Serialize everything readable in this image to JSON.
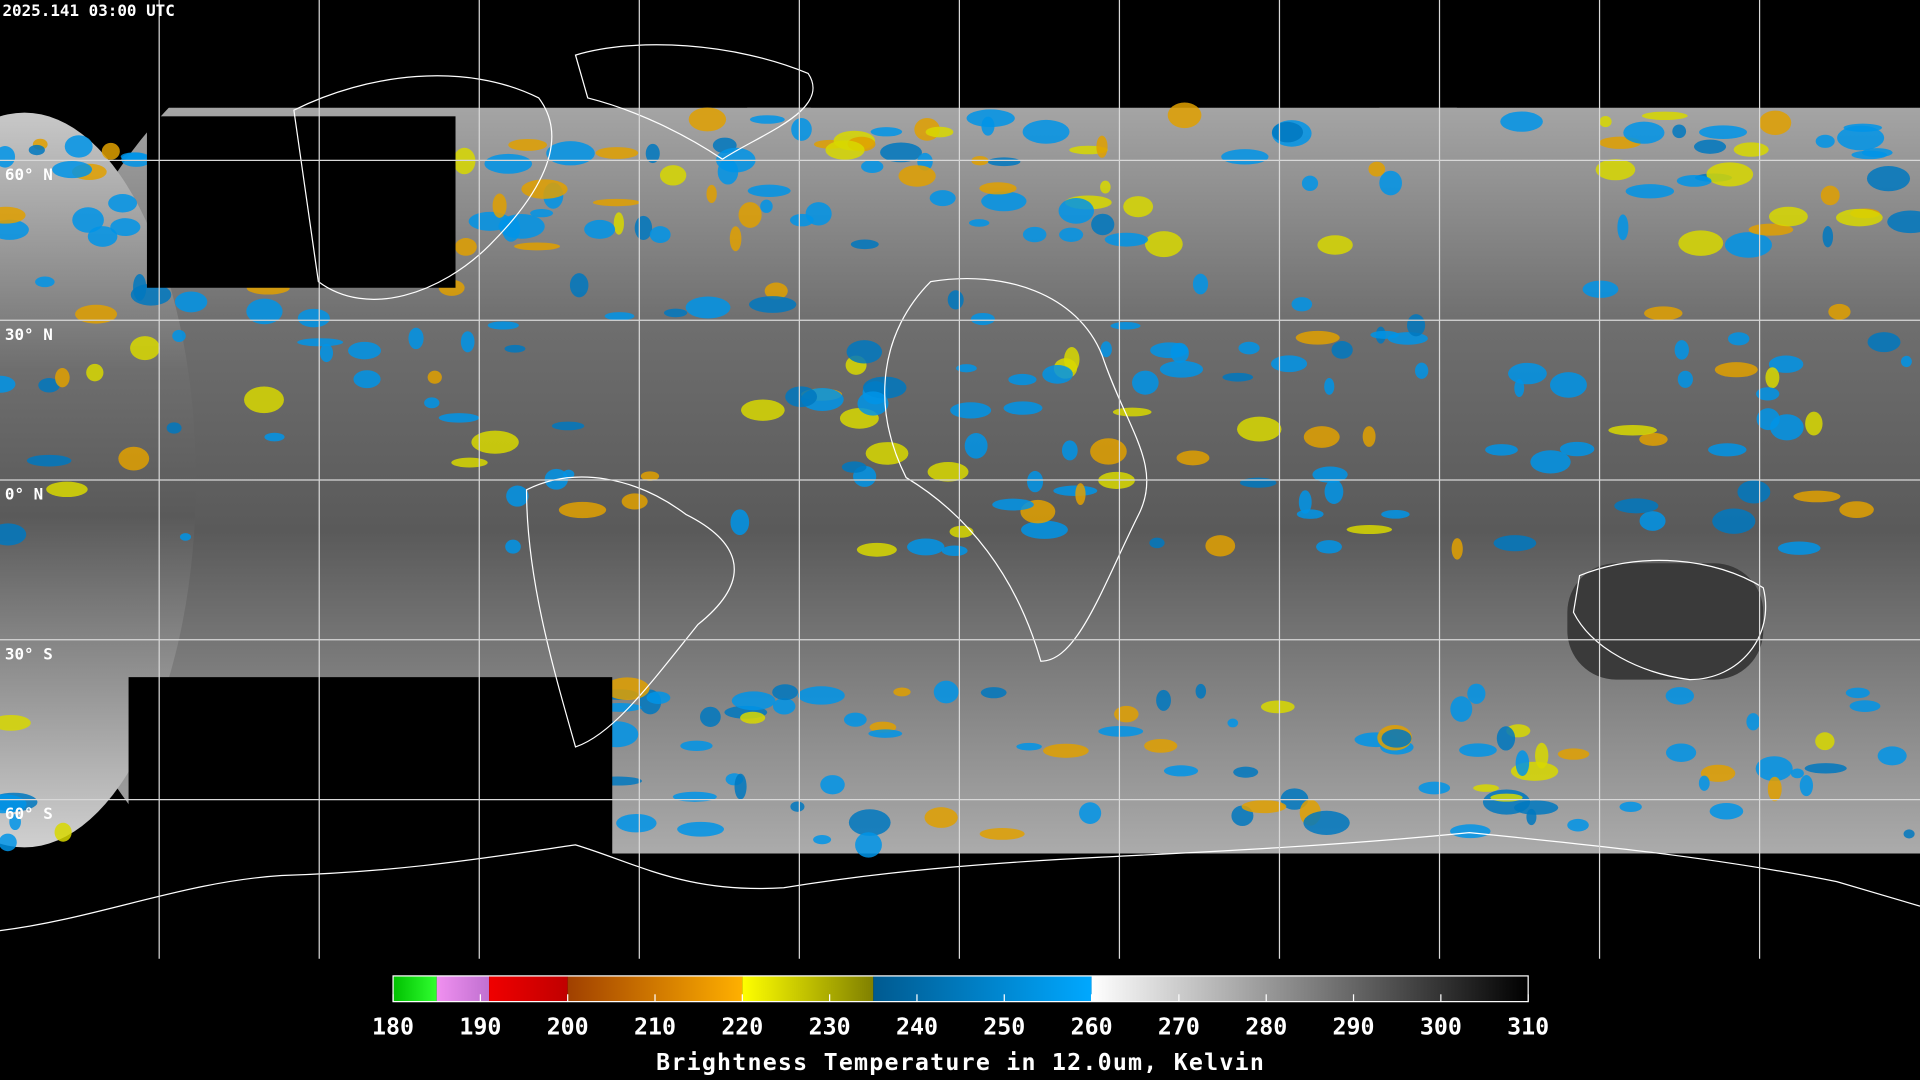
{
  "timestamp": "2025.141 03:00 UTC",
  "latitude_labels": [
    {
      "lat": 60,
      "label": "60° N"
    },
    {
      "lat": 30,
      "label": "30° N"
    },
    {
      "lat": 0,
      "label": "0° N"
    },
    {
      "lat": -30,
      "label": "30° S"
    },
    {
      "lat": -60,
      "label": "60° S"
    }
  ],
  "colorbar": {
    "title": "Brightness Temperature in 12.0um, Kelvin",
    "range": [
      180,
      310
    ],
    "ticks": [
      180,
      190,
      200,
      210,
      220,
      230,
      240,
      250,
      260,
      270,
      280,
      290,
      300,
      310
    ],
    "segments": [
      {
        "from": 180,
        "to": 185,
        "colors": [
          "#00c000",
          "#30ff30"
        ]
      },
      {
        "from": 185,
        "to": 191,
        "colors": [
          "#f090f0",
          "#c070d0"
        ]
      },
      {
        "from": 191,
        "to": 200,
        "colors": [
          "#f00000",
          "#c00000"
        ]
      },
      {
        "from": 200,
        "to": 220,
        "colors": [
          "#a04000",
          "#ffb000"
        ]
      },
      {
        "from": 220,
        "to": 235,
        "colors": [
          "#ffff00",
          "#808000"
        ]
      },
      {
        "from": 235,
        "to": 260,
        "colors": [
          "#005a90",
          "#00a8ff"
        ]
      },
      {
        "from": 260,
        "to": 310,
        "colors": [
          "#ffffff",
          "#000000"
        ]
      }
    ]
  }
}
